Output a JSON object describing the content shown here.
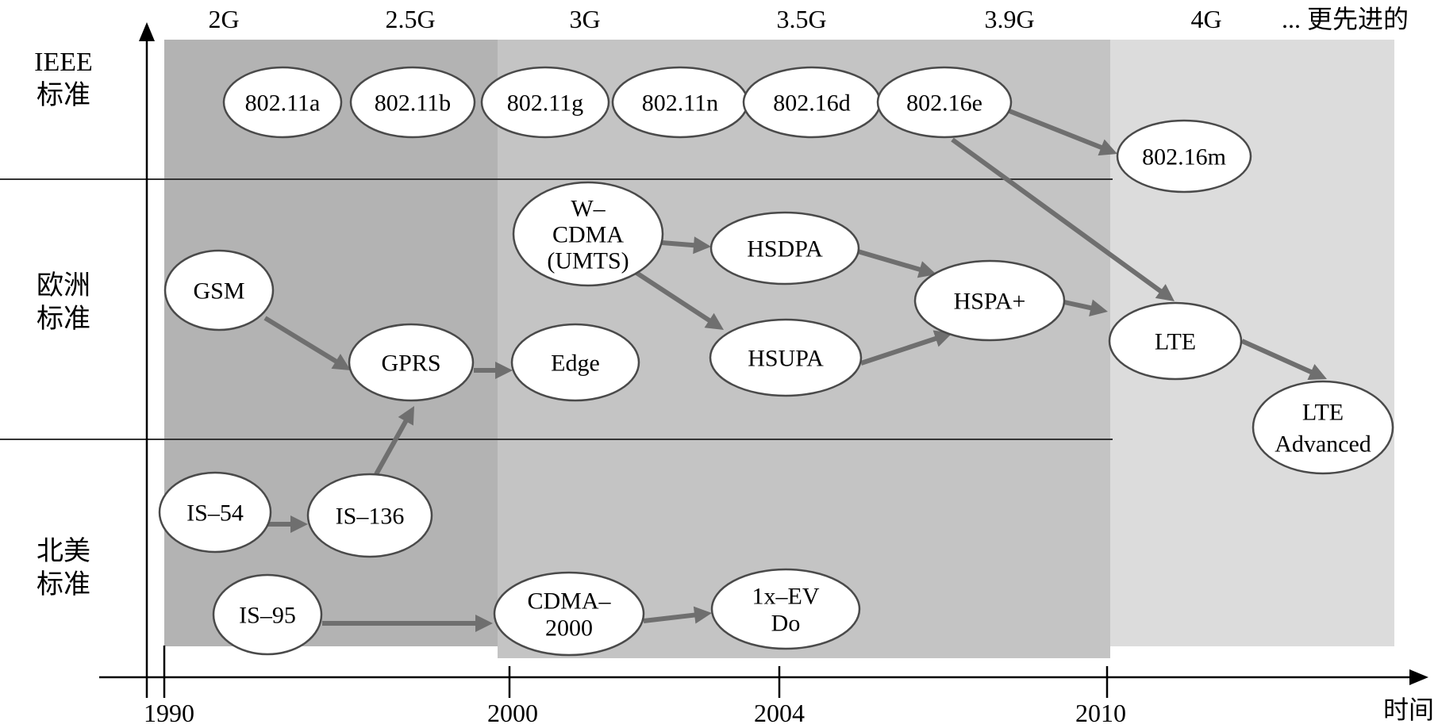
{
  "generations": [
    "2G",
    "2.5G",
    "3G",
    "3.5G",
    "3.9G",
    "4G",
    "... 更先进的"
  ],
  "rows": {
    "ieee": "IEEE\n标准",
    "europe": "欧洲\n标准",
    "north_america": "北美\n标准"
  },
  "x_axis": {
    "label": "时间",
    "ticks": [
      "1990",
      "2000",
      "2004",
      "2010"
    ]
  },
  "nodes": {
    "n80211a": "802.11a",
    "n80211b": "802.11b",
    "n80211g": "802.11g",
    "n80211n": "802.11n",
    "n80216d": "802.16d",
    "n80216e": "802.16e",
    "n80216m": "802.16m",
    "wcdma": "W–\nCDMA\n(UMTS)",
    "hsdpa": "HSDPA",
    "gsm": "GSM",
    "hspaplus": "HSPA+",
    "gprs": "GPRS",
    "edge": "Edge",
    "hsupa": "HSUPA",
    "lte": "LTE",
    "lteadv": "LTE\nAdvanced",
    "is54": "IS–54",
    "is136": "IS–136",
    "is95": "IS–95",
    "cdma2000": "CDMA–\n2000",
    "evdo": "1x–EV\nDo"
  },
  "colors": {
    "band_dark": "#b3b3b3",
    "band_mid": "#c4c4c4",
    "band_light": "#dcdcdc",
    "arrow": "#6f6f6f"
  }
}
